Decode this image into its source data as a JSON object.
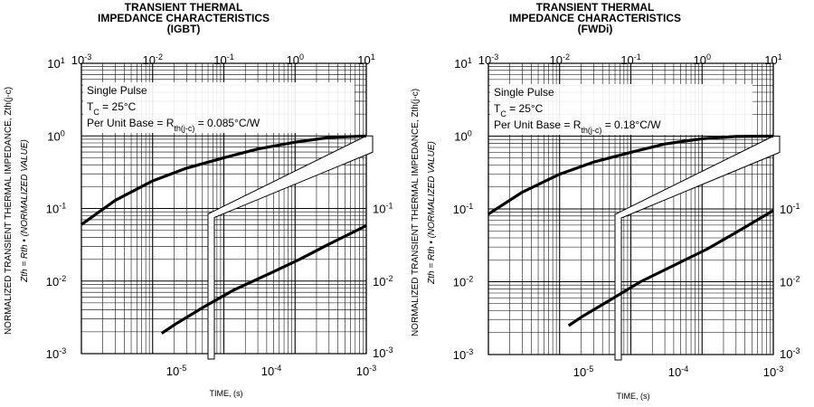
{
  "chart_data": [
    {
      "type": "line",
      "title_lines": [
        "TRANSIENT THERMAL",
        "IMPEDANCE CHARACTERISTICS",
        "(IGBT)"
      ],
      "ylabel": "NORMALIZED TRANSIENT THERMAL IMPEDANCE, Zth(j-c)",
      "ylabel2": "Zth = Rth • (NORMALIZED VALUE)",
      "xlabel": "TIME, (s)",
      "y_scale": "log",
      "ylim": [
        0.001,
        10
      ],
      "grid": true,
      "upper_axis": {
        "xlim": [
          0.001,
          10
        ],
        "tick_bases": [
          "10",
          "10",
          "10",
          "10",
          "10"
        ],
        "tick_exps": [
          "-3",
          "-2",
          "-1",
          "0",
          "1"
        ]
      },
      "lower_axis": {
        "xlim": [
          1e-06,
          0.001
        ],
        "tick_bases": [
          "10",
          "10",
          "10"
        ],
        "tick_exps": [
          "-5",
          "-4",
          "-3"
        ]
      },
      "left_ticks": {
        "bases": [
          "10",
          "10",
          "10",
          "10",
          "10"
        ],
        "exps": [
          "1",
          "0",
          "-1",
          "-2",
          "-3"
        ]
      },
      "right_ticks": {
        "bases": [
          "10",
          "10",
          "10"
        ],
        "exps": [
          "-1",
          "-2",
          "-3"
        ]
      },
      "annotation": {
        "line1": "Single Pulse",
        "line2_main": "T",
        "line2_sub": "C",
        "line2_rest": " = 25°C",
        "line3_main": "Per Unit Base = R",
        "line3_sub": "th(j-c)",
        "line3_rest": " = 0.085°C/W"
      },
      "series": [
        {
          "axis": "upper",
          "x": [
            0.001,
            0.003,
            0.01,
            0.03,
            0.1,
            0.3,
            1,
            3,
            10
          ],
          "y": [
            0.06,
            0.13,
            0.24,
            0.36,
            0.5,
            0.66,
            0.82,
            0.95,
            1.0
          ]
        },
        {
          "axis": "lower",
          "x": [
            7e-06,
            1e-05,
            2e-05,
            4e-05,
            0.0001,
            0.0002,
            0.0004,
            0.001
          ],
          "y": [
            0.0019,
            0.0026,
            0.0045,
            0.0075,
            0.013,
            0.02,
            0.032,
            0.058
          ]
        }
      ]
    },
    {
      "type": "line",
      "title_lines": [
        "TRANSIENT THERMAL",
        "IMPEDANCE CHARACTERISTICS",
        "(FWDi)"
      ],
      "ylabel": "NORMALIZED TRANSIENT THERMAL IMPEDANCE, Zth(j-c)",
      "ylabel2": "Zth = Rth • (NORMALIZED VALUE)",
      "xlabel": "TIME, (s)",
      "y_scale": "log",
      "ylim": [
        0.001,
        10
      ],
      "grid": true,
      "upper_axis": {
        "xlim": [
          0.001,
          10
        ],
        "tick_bases": [
          "10",
          "10",
          "10",
          "10",
          "10"
        ],
        "tick_exps": [
          "-3",
          "-2",
          "-1",
          "0",
          "1"
        ]
      },
      "lower_axis": {
        "xlim": [
          1e-06,
          0.001
        ],
        "tick_bases": [
          "10",
          "10",
          "10"
        ],
        "tick_exps": [
          "-5",
          "-4",
          "-3"
        ]
      },
      "left_ticks": {
        "bases": [
          "10",
          "10",
          "10",
          "10",
          "10"
        ],
        "exps": [
          "1",
          "0",
          "-1",
          "-2",
          "-3"
        ]
      },
      "right_ticks": {
        "bases": [
          "10",
          "10",
          "10"
        ],
        "exps": [
          "-1",
          "-2",
          "-3"
        ]
      },
      "annotation": {
        "line1": "Single Pulse",
        "line2_main": "T",
        "line2_sub": "C",
        "line2_rest": " = 25°C",
        "line3_main": "Per Unit Base = R",
        "line3_sub": "th(j-c)",
        "line3_rest": " = 0.18°C/W"
      },
      "series": [
        {
          "axis": "upper",
          "x": [
            0.001,
            0.003,
            0.01,
            0.03,
            0.1,
            0.3,
            1,
            3,
            10
          ],
          "y": [
            0.085,
            0.17,
            0.3,
            0.44,
            0.6,
            0.78,
            0.92,
            0.99,
            1.0
          ]
        },
        {
          "axis": "lower",
          "x": [
            7e-06,
            1e-05,
            2e-05,
            4e-05,
            0.0001,
            0.0002,
            0.0004,
            0.001
          ],
          "y": [
            0.0025,
            0.0034,
            0.0058,
            0.01,
            0.018,
            0.028,
            0.047,
            0.095
          ]
        }
      ]
    }
  ]
}
